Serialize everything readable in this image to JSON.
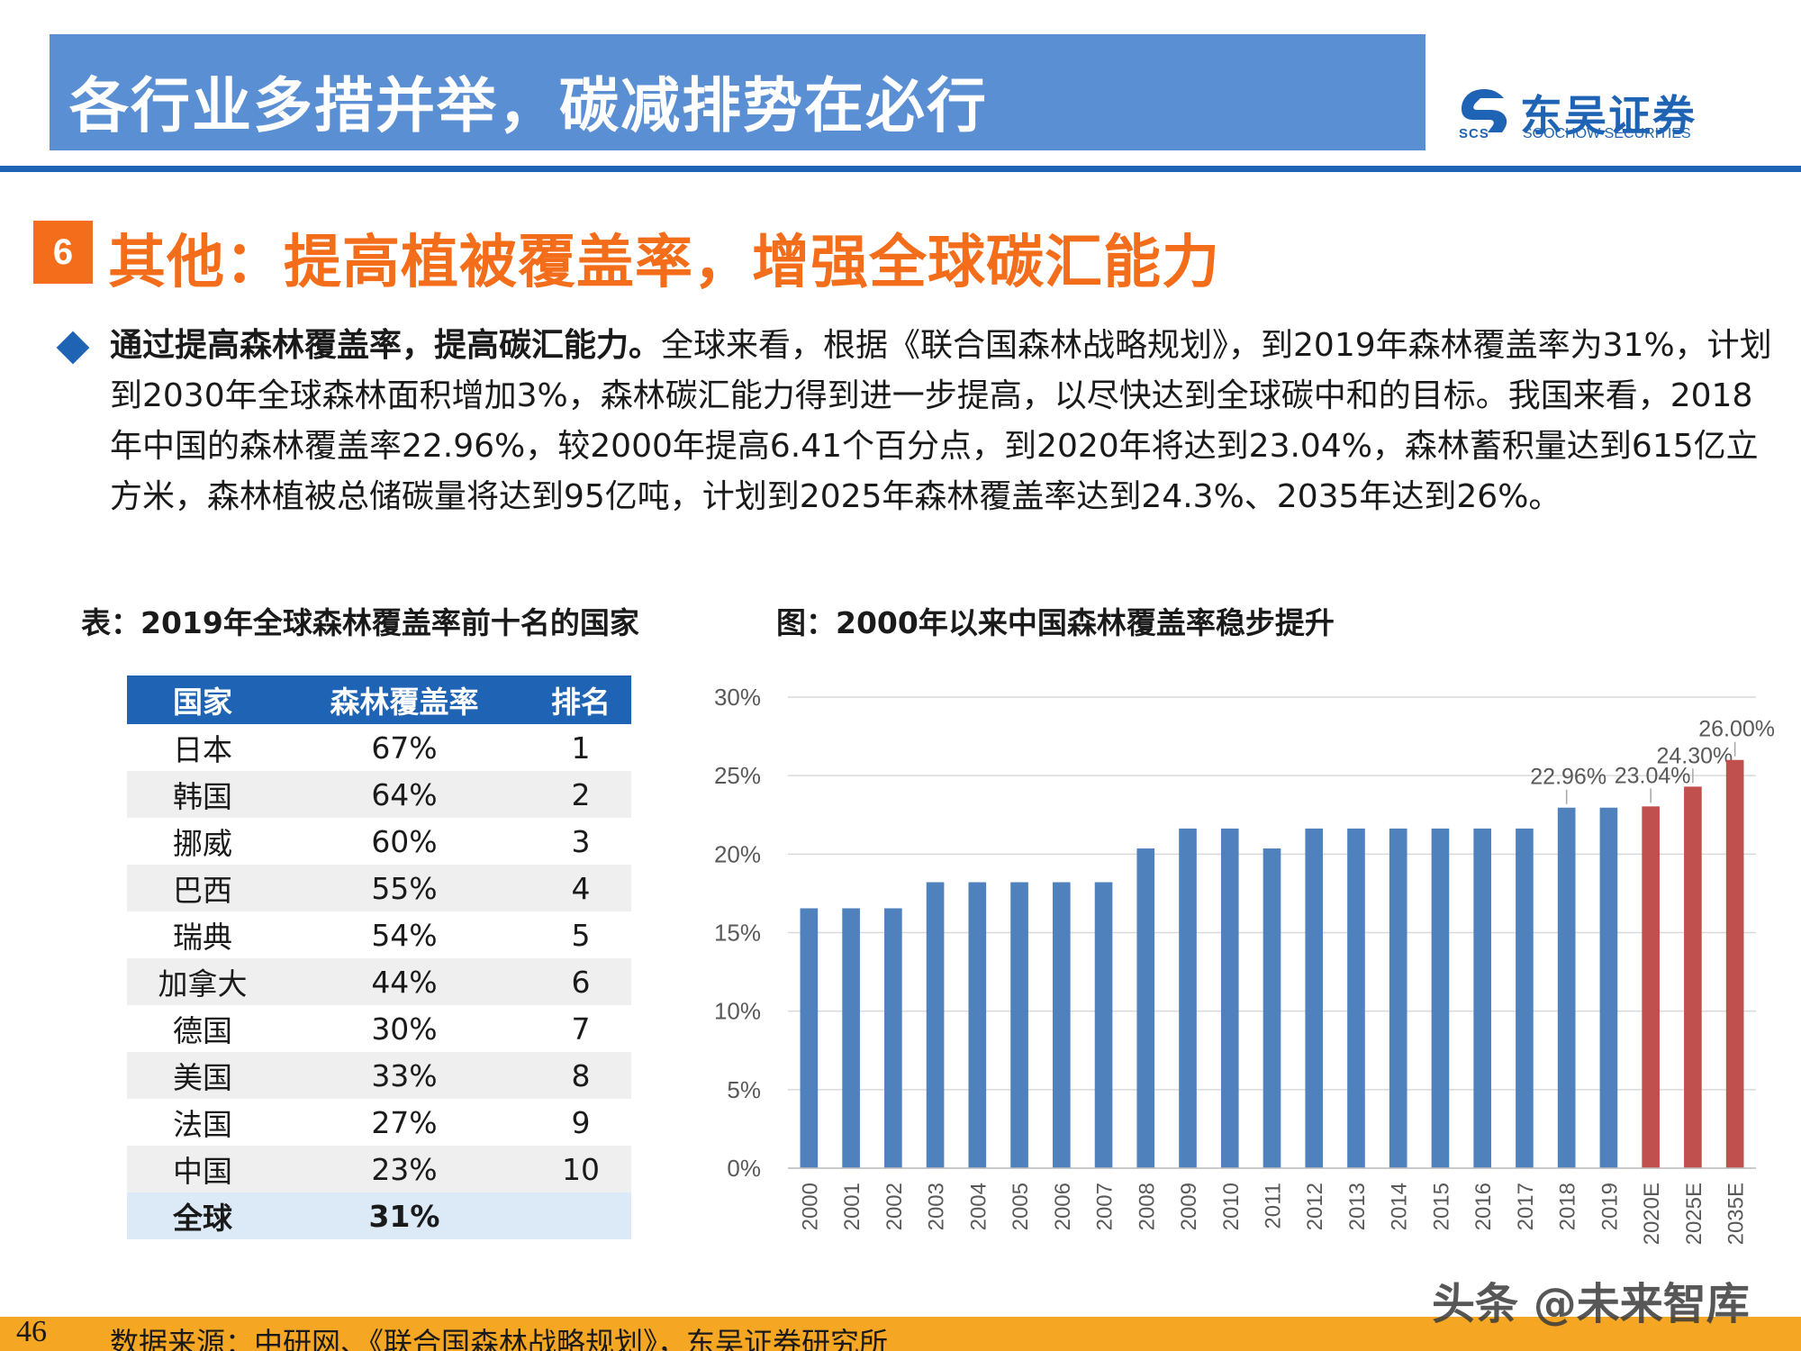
{
  "header": {
    "title": "各行业多措并举，碳减排势在必行"
  },
  "brand": {
    "name_cn": "东吴证券",
    "name_en": "SOOCHOW SECURITIES",
    "mark": "SCS"
  },
  "section": {
    "number": "6",
    "title": "其他：提高植被覆盖率，增强全球碳汇能力"
  },
  "body": {
    "lead": "通过提高森林覆盖率，提高碳汇能力。",
    "text": "全球来看，根据《联合国森林战略规划》，到2019年森林覆盖率为31%，计划到2030年全球森林面积增加3%，森林碳汇能力得到进一步提高，以尽快达到全球碳中和的目标。我国来看，2018年中国的森林覆盖率22.96%，较2000年提高6.41个百分点，到2020年将达到23.04%，森林蓄积量达到615亿立方米，森林植被总储碳量将达到95亿吨，计划到2025年森林覆盖率达到24.3%、2035年达到26%。"
  },
  "table": {
    "caption": "表：2019年全球森林覆盖率前十名的国家",
    "headers": [
      "国家",
      "森林覆盖率",
      "排名"
    ],
    "rows": [
      [
        "日本",
        "67%",
        "1"
      ],
      [
        "韩国",
        "64%",
        "2"
      ],
      [
        "挪威",
        "60%",
        "3"
      ],
      [
        "巴西",
        "55%",
        "4"
      ],
      [
        "瑞典",
        "54%",
        "5"
      ],
      [
        "加拿大",
        "44%",
        "6"
      ],
      [
        "德国",
        "30%",
        "7"
      ],
      [
        "美国",
        "33%",
        "8"
      ],
      [
        "法国",
        "27%",
        "9"
      ],
      [
        "中国",
        "23%",
        "10"
      ],
      [
        "全球",
        "31%",
        ""
      ]
    ]
  },
  "figure": {
    "caption": "图：2000年以来中国森林覆盖率稳步提升"
  },
  "chart_data": {
    "type": "bar",
    "categories": [
      "2000",
      "2001",
      "2002",
      "2003",
      "2004",
      "2005",
      "2006",
      "2007",
      "2008",
      "2009",
      "2010",
      "2011",
      "2012",
      "2013",
      "2014",
      "2015",
      "2016",
      "2017",
      "2018",
      "2019",
      "2020E",
      "2025E",
      "2035E"
    ],
    "values": [
      16.55,
      16.55,
      16.55,
      18.21,
      18.21,
      18.21,
      18.21,
      18.21,
      20.36,
      21.63,
      21.63,
      20.36,
      21.63,
      21.63,
      21.63,
      21.63,
      21.63,
      21.63,
      22.96,
      22.96,
      23.04,
      24.3,
      26.0
    ],
    "data_labels": [
      "",
      "",
      "",
      "",
      "",
      "",
      "",
      "",
      "",
      "",
      "",
      "",
      "",
      "",
      "",
      "",
      "",
      "",
      "22.96%",
      "",
      "23.04%",
      "24.30%",
      "26.00%"
    ],
    "projected_from_index": 20,
    "ylim": [
      0,
      30
    ],
    "yticks": [
      "0%",
      "5%",
      "10%",
      "15%",
      "20%",
      "25%",
      "30%"
    ],
    "grid": true,
    "colors": {
      "actual": "#4f81bd",
      "projected": "#c0504d"
    }
  },
  "footer": {
    "page": "46",
    "source": "数据来源：中研网、《联合国森林战略规划》，东吴证券研究所",
    "watermark": "头条 @未来智库"
  }
}
